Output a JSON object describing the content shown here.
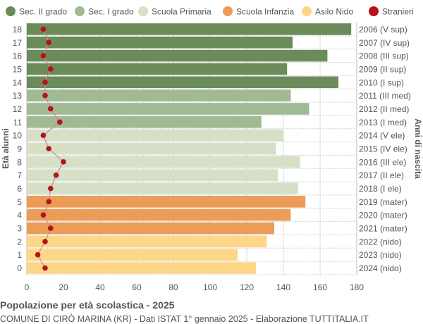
{
  "chart_data": {
    "type": "bar",
    "orientation": "horizontal",
    "title": "Popolazione per età scolastica - 2025",
    "subtitle": "COMUNE DI CIRÒ MARINA (KR) - Dati ISTAT 1° gennaio 2025 - Elaborazione TUTTITALIA.IT",
    "ylabel": "Età alunni",
    "ylabel_right": "Anni di nascita",
    "xlim": [
      0,
      180
    ],
    "xticks": [
      0,
      20,
      40,
      60,
      80,
      100,
      120,
      140,
      160,
      180
    ],
    "grid": true,
    "legend_position": "top",
    "legend": [
      {
        "name": "Sec. II grado",
        "color": "#6b8c5a"
      },
      {
        "name": "Sec. I grado",
        "color": "#a0ba94"
      },
      {
        "name": "Scuola Primaria",
        "color": "#d5e0c6"
      },
      {
        "name": "Scuola Infanzia",
        "color": "#eb9c57"
      },
      {
        "name": "Asilo Nido",
        "color": "#fed688"
      },
      {
        "name": "Stranieri",
        "color": "#b5121b"
      }
    ],
    "ages": [
      18,
      17,
      16,
      15,
      14,
      13,
      12,
      11,
      10,
      9,
      8,
      7,
      6,
      5,
      4,
      3,
      2,
      1,
      0
    ],
    "birth_years": [
      "2006 (V sup)",
      "2007 (IV sup)",
      "2008 (III sup)",
      "2009 (II sup)",
      "2010 (I sup)",
      "2011 (III med)",
      "2012 (II med)",
      "2013 (I med)",
      "2014 (V ele)",
      "2015 (IV ele)",
      "2016 (III ele)",
      "2017 (II ele)",
      "2018 (I ele)",
      "2019 (mater)",
      "2020 (mater)",
      "2021 (mater)",
      "2022 (nido)",
      "2023 (nido)",
      "2024 (nido)"
    ],
    "groups": [
      0,
      0,
      0,
      0,
      0,
      1,
      1,
      1,
      2,
      2,
      2,
      2,
      2,
      3,
      3,
      3,
      4,
      4,
      4
    ],
    "values": [
      177,
      145,
      164,
      142,
      170,
      144,
      154,
      128,
      140,
      136,
      149,
      137,
      148,
      152,
      144,
      135,
      131,
      115,
      125
    ],
    "stranieri": [
      9,
      12,
      9,
      13,
      10,
      10,
      13,
      18,
      9,
      12,
      20,
      16,
      13,
      12,
      9,
      13,
      10,
      6,
      10
    ]
  }
}
